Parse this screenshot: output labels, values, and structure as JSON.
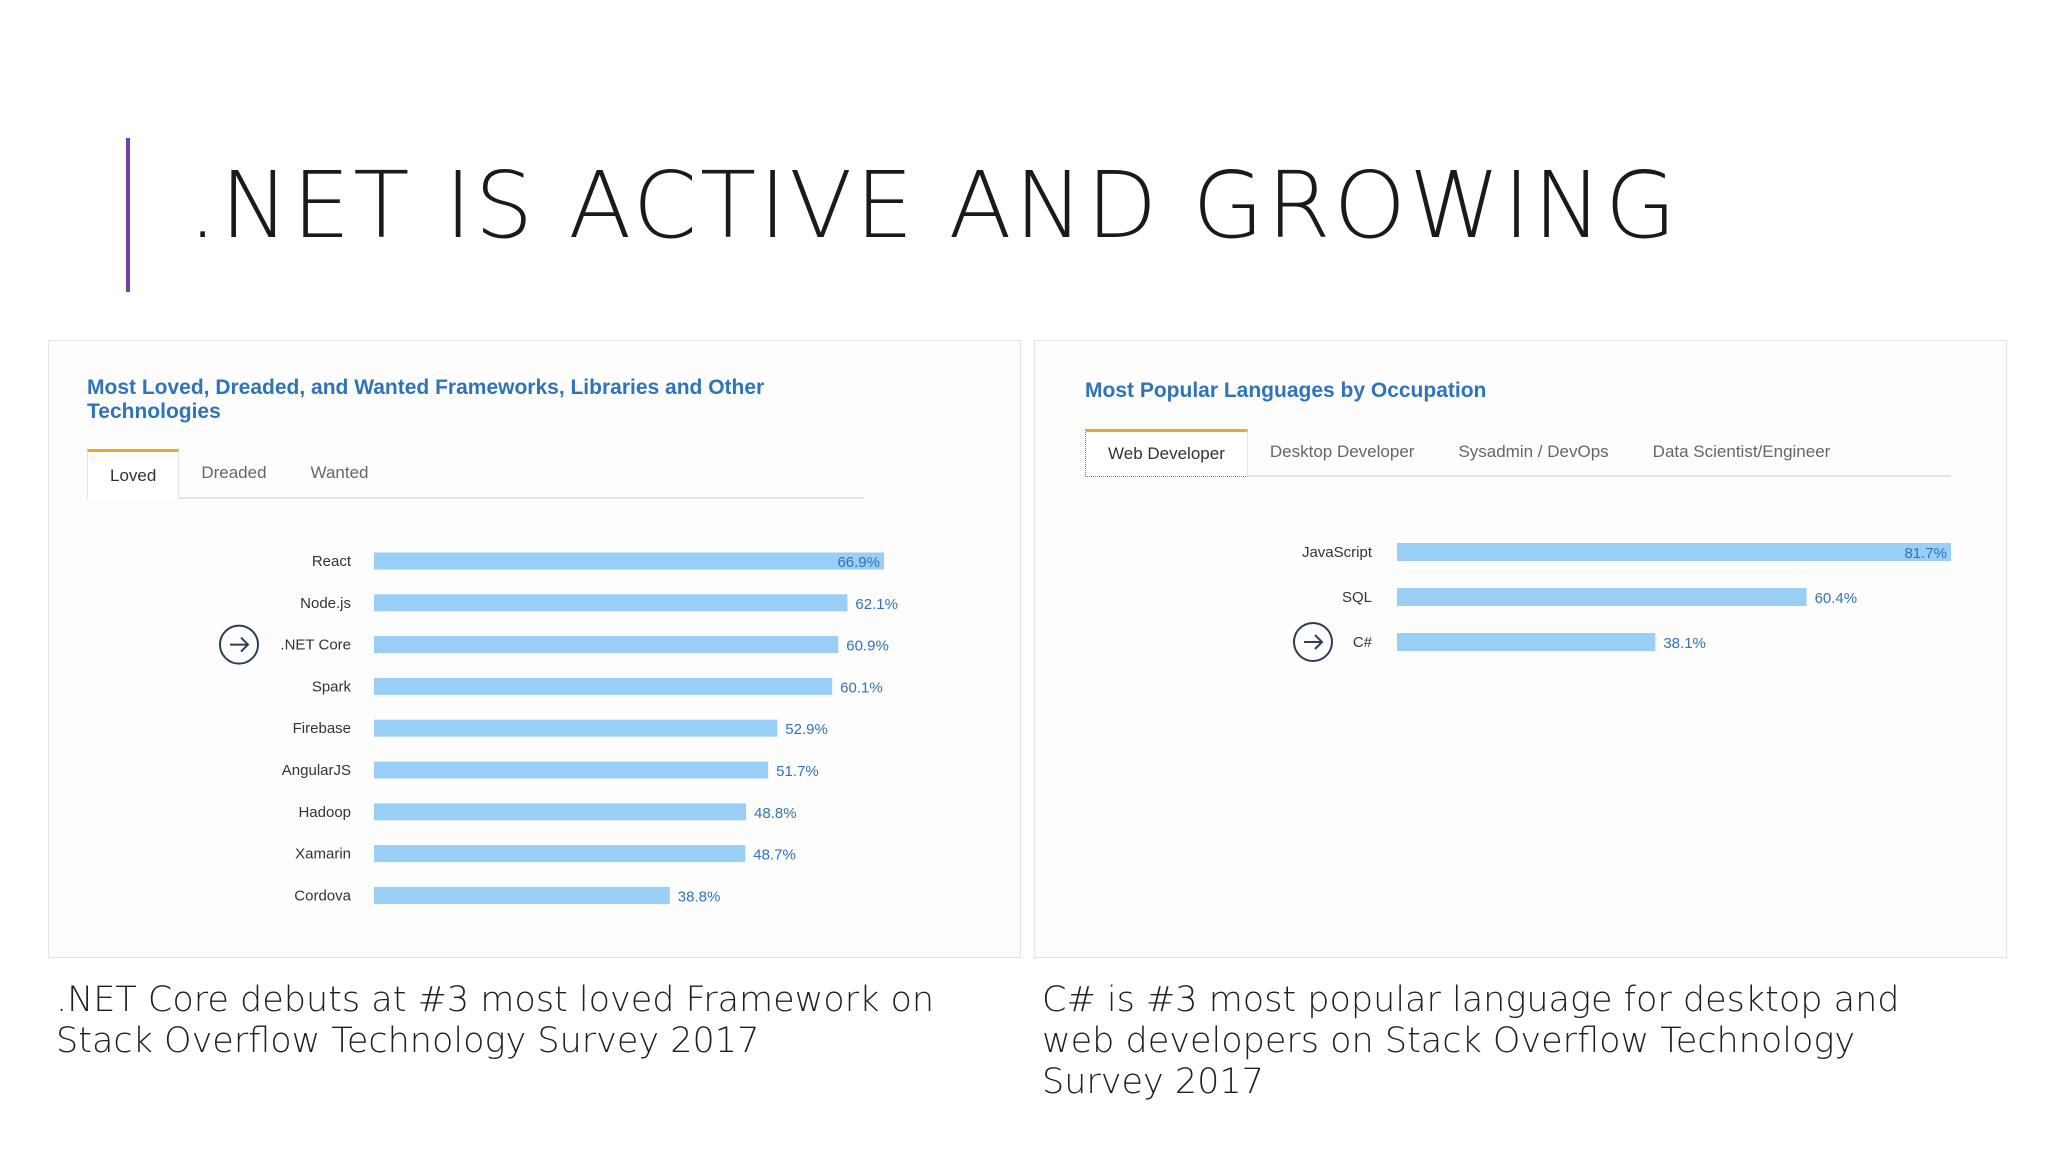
{
  "slide": {
    "title": ".NET IS ACTIVE AND GROWING",
    "accent_color": "#7b3fa1"
  },
  "left_panel": {
    "title": "Most Loved, Dreaded, and Wanted Frameworks, Libraries and Other Technologies",
    "tabs": [
      "Loved",
      "Dreaded",
      "Wanted"
    ],
    "active_tab": "Loved",
    "highlight_icon": "arrow-right-circle-icon",
    "highlight_category": ".NET Core",
    "caption": ".NET Core debuts at #3 most loved Framework on Stack Overflow Technology Survey 2017"
  },
  "right_panel": {
    "title": "Most Popular Languages by Occupation",
    "tabs": [
      "Web Developer",
      "Desktop Developer",
      "Sysadmin / DevOps",
      "Data Scientist/Engineer"
    ],
    "active_tab": "Web Developer",
    "highlight_icon": "arrow-right-circle-icon",
    "highlight_category": "C#",
    "caption": "C# is #3 most popular language for desktop and web developers on Stack Overflow Technology Survey 2017"
  },
  "colors": {
    "bar": "#99cff7",
    "value_label": "#2f73b8",
    "title": "#2f73b8",
    "tab_accent": "#f2a52c"
  },
  "chart_data": [
    {
      "type": "bar",
      "orientation": "horizontal",
      "title": "Most Loved, Dreaded, and Wanted Frameworks, Libraries and Other Technologies",
      "categories": [
        "React",
        "Node.js",
        ".NET Core",
        "Spark",
        "Firebase",
        "AngularJS",
        "Hadoop",
        "Xamarin",
        "Cordova"
      ],
      "values": [
        66.9,
        62.1,
        60.9,
        60.1,
        52.9,
        51.7,
        48.8,
        48.7,
        38.8
      ],
      "value_labels": [
        "66.9%",
        "62.1%",
        "60.9%",
        "60.1%",
        "52.9%",
        "51.7%",
        "48.8%",
        "48.7%",
        "38.8%"
      ],
      "xlim": [
        0,
        66.9
      ],
      "grid": false
    },
    {
      "type": "bar",
      "orientation": "horizontal",
      "title": "Most Popular Languages by Occupation",
      "categories": [
        "JavaScript",
        "SQL",
        "C#"
      ],
      "values": [
        81.7,
        60.4,
        38.1
      ],
      "value_labels": [
        "81.7%",
        "60.4%",
        "38.1%"
      ],
      "xlim": [
        0,
        81.7
      ],
      "grid": false
    }
  ]
}
